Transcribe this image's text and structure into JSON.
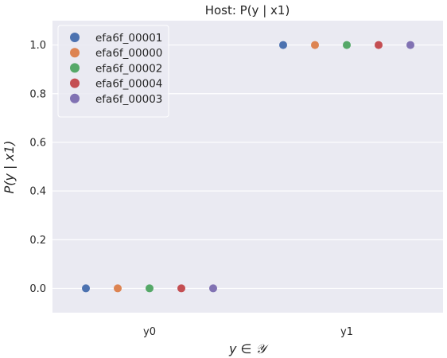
{
  "chart_data": {
    "type": "scatter",
    "title": "Host: P(y | x1)",
    "xlabel": "y ∈ 𝒴",
    "ylabel": "P(y | x1)",
    "categories": [
      "y0",
      "y1"
    ],
    "ylim": [
      -0.1,
      1.1
    ],
    "yticks": [
      "0.0",
      "0.2",
      "0.4",
      "0.6",
      "0.8",
      "1.0"
    ],
    "grid": true,
    "legend_position": "top-left",
    "series": [
      {
        "name": "efa6f_00001",
        "color": "#4c72b0",
        "values": [
          0.0,
          1.0
        ]
      },
      {
        "name": "efa6f_00000",
        "color": "#dd8452",
        "values": [
          0.0,
          1.0
        ]
      },
      {
        "name": "efa6f_00002",
        "color": "#55a868",
        "values": [
          0.0,
          1.0
        ]
      },
      {
        "name": "efa6f_00004",
        "color": "#c44e52",
        "values": [
          0.0,
          1.0
        ]
      },
      {
        "name": "efa6f_00003",
        "color": "#8172b3",
        "values": [
          0.0,
          1.0
        ]
      }
    ]
  }
}
